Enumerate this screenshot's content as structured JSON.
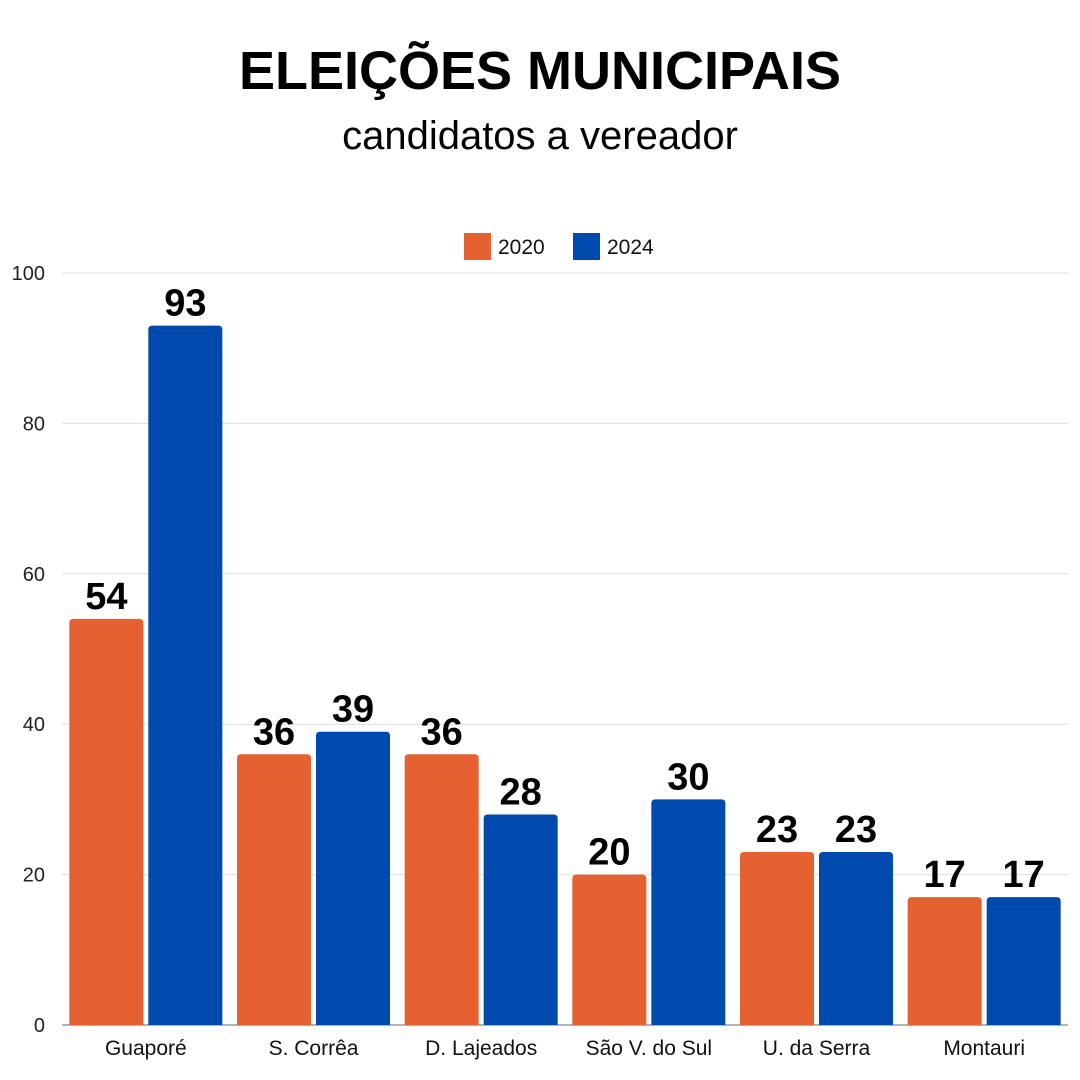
{
  "chart_data": {
    "type": "bar",
    "title": "ELEIÇÕES MUNICIPAIS",
    "subtitle": "candidatos a vereador",
    "categories": [
      "Guaporé",
      "S. Corrêa",
      "D. Lajeados",
      "São V. do Sul",
      "U. da Serra",
      "Montauri"
    ],
    "series": [
      {
        "name": "2020",
        "color": "#E56131",
        "values": [
          54,
          36,
          36,
          20,
          23,
          17
        ]
      },
      {
        "name": "2024",
        "color": "#004AAD",
        "values": [
          93,
          39,
          28,
          30,
          23,
          17
        ]
      }
    ],
    "ylim": [
      0,
      100
    ],
    "yticks": [
      0,
      20,
      40,
      60,
      80,
      100
    ],
    "grid": true,
    "legend": "top-center",
    "data_labels": true
  }
}
